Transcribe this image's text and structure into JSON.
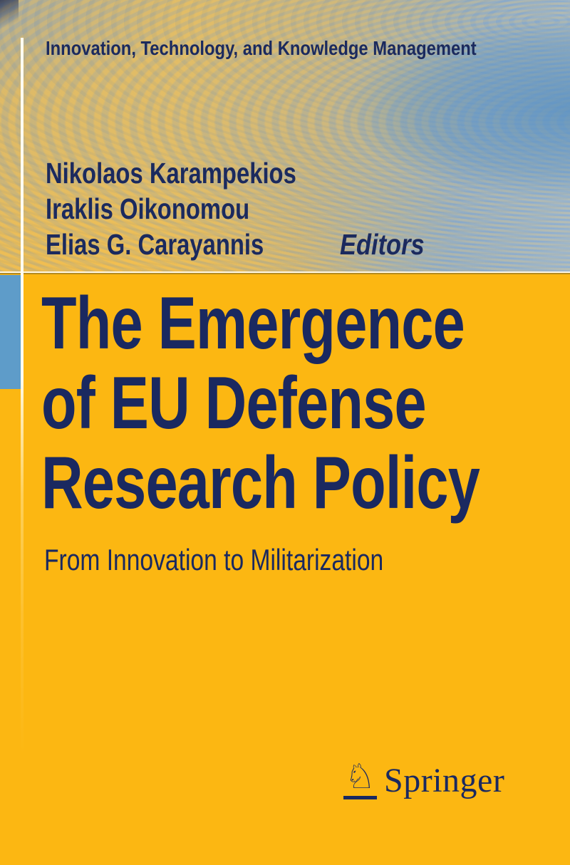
{
  "series": {
    "title": "Innovation, Technology, and Knowledge Management"
  },
  "authors": {
    "line1": "Nikolaos Karampekios",
    "line2": "Iraklis Oikonomou",
    "line3": "Elias G. Carayannis",
    "editors_label": "Editors"
  },
  "title": {
    "line1": "The Emergence",
    "line2": "of EU Defense",
    "line3": "Research Policy"
  },
  "subtitle": "From Innovation to Militarization",
  "publisher": {
    "name": "Springer",
    "icon": "springer-knight-icon",
    "icon_glyph": "♘"
  },
  "colors": {
    "cover_yellow": "#FCB712",
    "text_navy": "#1A2960",
    "left_tab_blue": "#5E9CC9",
    "swirl_tan": "#D8B76A",
    "swirl_blue": "#8FB2D3",
    "rule_cream": "#FFFDF2"
  }
}
